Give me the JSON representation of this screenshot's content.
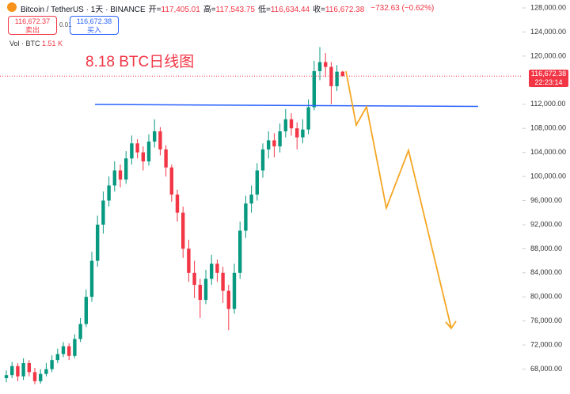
{
  "chart_data": {
    "type": "candlestick",
    "title": "Bitcoin / TetherUS · 1天 · BINANCE",
    "stats": [
      {
        "label": "开=",
        "value": "117,405.01"
      },
      {
        "label": "高=",
        "value": "117,543.75"
      },
      {
        "label": "低=",
        "value": "116,634.44"
      },
      {
        "label": "收=",
        "value": "116,672.38"
      }
    ],
    "change": "−732.63 (−0.62%)",
    "sell_price": "116,672.37",
    "sell_label": "卖出",
    "spread": "0.01",
    "buy_price": "116,672.38",
    "buy_label": "买入",
    "volume_label": "Vol · BTC",
    "volume_value": "1.51 K",
    "annotation": "8.18 BTC日线图",
    "price_tag": "116,672.38",
    "countdown": "22:23:14",
    "up_color": "#089981",
    "down_color": "#f23645",
    "open": [
      66500,
      67000,
      68500,
      66800,
      69000,
      67500,
      66000,
      67200,
      68000,
      69500,
      70500,
      71800,
      70200,
      73000,
      75500,
      80000,
      86000,
      92000,
      96000,
      98500,
      101000,
      99500,
      103000,
      105500,
      104000,
      102500,
      105800,
      107500,
      104500,
      101500,
      97000,
      94000,
      88000,
      84000,
      82000,
      79500,
      83000,
      85500,
      84000,
      81000,
      78000,
      84000,
      91000,
      95500,
      97000,
      101000,
      104500,
      106000,
      105000,
      107500,
      109500,
      108000,
      106500,
      107800,
      111500,
      117500,
      119000,
      118200,
      115000,
      117405.01
    ],
    "high": [
      67800,
      69200,
      69000,
      69800,
      69500,
      68200,
      68000,
      69000,
      70300,
      71400,
      72500,
      72300,
      73800,
      76500,
      81200,
      87500,
      93500,
      97500,
      100000,
      102500,
      102000,
      104200,
      106800,
      106200,
      105000,
      107000,
      109500,
      108200,
      105200,
      102000,
      97800,
      95000,
      89500,
      86000,
      83000,
      84500,
      87000,
      86200,
      85000,
      82000,
      85500,
      92500,
      96800,
      98500,
      102200,
      105500,
      107500,
      107200,
      108800,
      111200,
      110500,
      109000,
      109500,
      112800,
      119200,
      121500,
      120500,
      119000,
      118500,
      117543.75
    ],
    "low": [
      65800,
      66500,
      66000,
      66200,
      66800,
      65500,
      65600,
      66800,
      67500,
      69000,
      70000,
      69500,
      69800,
      72500,
      75000,
      79200,
      85000,
      90500,
      95000,
      97500,
      98200,
      98800,
      102000,
      103000,
      101000,
      101800,
      104800,
      103500,
      100000,
      95800,
      92500,
      86500,
      82500,
      79800,
      76500,
      78800,
      82000,
      82500,
      79000,
      74500,
      77200,
      83000,
      89800,
      94000,
      96000,
      99800,
      103000,
      103200,
      104000,
      106500,
      106800,
      104500,
      105500,
      107000,
      111000,
      116000,
      116500,
      112000,
      114200,
      116634.44
    ],
    "close": [
      67000,
      68500,
      66800,
      69000,
      67500,
      66000,
      67200,
      68000,
      69500,
      70500,
      71800,
      70200,
      73000,
      75500,
      80000,
      86000,
      92000,
      96000,
      98500,
      101000,
      99500,
      103000,
      105500,
      104000,
      102500,
      105800,
      107500,
      104500,
      101500,
      97000,
      94000,
      88000,
      84000,
      82000,
      79500,
      83000,
      85500,
      84000,
      81000,
      78000,
      84000,
      91000,
      95500,
      97000,
      101000,
      104500,
      106000,
      105000,
      107500,
      109500,
      108000,
      106500,
      107800,
      111500,
      117500,
      119000,
      118200,
      115000,
      117400,
      116672.38
    ],
    "ylim": [
      64000,
      128000
    ],
    "yticks": [
      {
        "value": 128000,
        "label": "128,000.00"
      },
      {
        "value": 124000,
        "label": "124,000.00"
      },
      {
        "value": 120000,
        "label": "120,000.00"
      },
      {
        "value": 112000,
        "label": "112,000.00"
      },
      {
        "value": 108000,
        "label": "108,000.00"
      },
      {
        "value": 104000,
        "label": "104,000.00"
      },
      {
        "value": 100000,
        "label": "100,000.00"
      },
      {
        "value": 96000,
        "label": "96,000.00"
      },
      {
        "value": 92000,
        "label": "92,000.00"
      },
      {
        "value": 88000,
        "label": "88,000.00"
      },
      {
        "value": 84000,
        "label": "84,000.00"
      },
      {
        "value": 80000,
        "label": "80,000.00"
      },
      {
        "value": 76000,
        "label": "76,000.00"
      },
      {
        "value": 72000,
        "label": "72,000.00"
      },
      {
        "value": 68000,
        "label": "68,000.00"
      }
    ]
  }
}
